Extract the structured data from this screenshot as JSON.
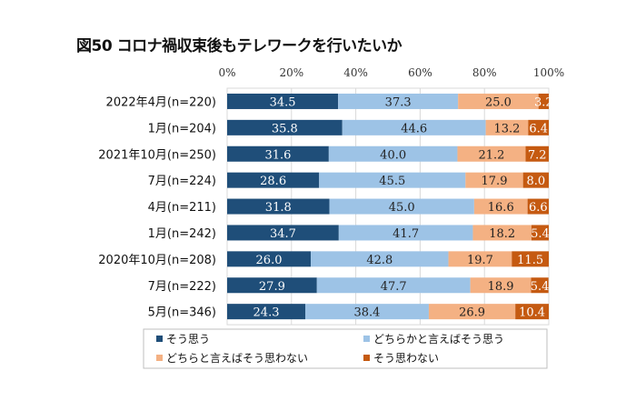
{
  "chart_data": {
    "type": "bar",
    "stacked": true,
    "orientation": "horizontal",
    "title": "図50 コロナ禍収束後もテレワークを行いたいか",
    "categories": [
      "2022年4月(n=220)",
      "1月(n=204)",
      "2021年10月(n=250)",
      "7月(n=224)",
      "4月(n=211)",
      "1月(n=242)",
      "2020年10月(n=208)",
      "7月(n=222)",
      "5月(n=346)"
    ],
    "series": [
      {
        "name": "そう思う",
        "color": "#1f4e79",
        "values": [
          34.5,
          35.8,
          31.6,
          28.6,
          31.8,
          34.7,
          26.0,
          27.9,
          24.3
        ]
      },
      {
        "name": "どちらかと言えばそう思う",
        "color": "#9dc3e6",
        "values": [
          37.3,
          44.6,
          40.0,
          45.5,
          45.0,
          41.7,
          42.8,
          47.7,
          38.4
        ]
      },
      {
        "name": "どちらと言えばそう思わない",
        "color": "#f4b183",
        "values": [
          25.0,
          13.2,
          21.2,
          17.9,
          16.6,
          18.2,
          19.7,
          18.9,
          26.9
        ]
      },
      {
        "name": "そう思わない",
        "color": "#c55a11",
        "values": [
          3.2,
          6.4,
          7.2,
          8.0,
          6.6,
          5.4,
          11.5,
          5.4,
          10.4
        ]
      }
    ],
    "xlim": [
      0,
      100
    ],
    "xticks": [
      "0%",
      "20%",
      "40%",
      "60%",
      "80%",
      "100%"
    ],
    "grid": true,
    "legend": "bottom"
  }
}
